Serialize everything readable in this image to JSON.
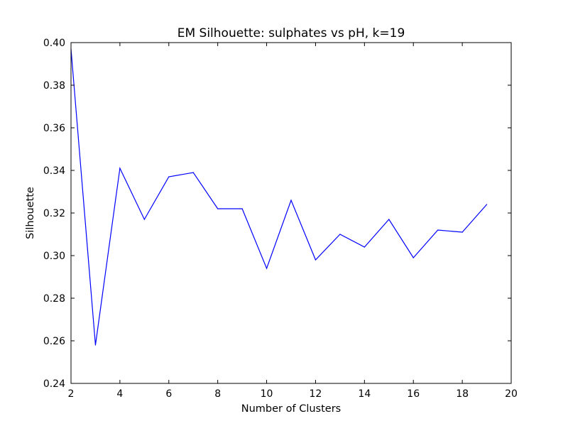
{
  "chart_data": {
    "type": "line",
    "title": "EM Silhouette: sulphates vs pH, k=19",
    "xlabel": "Number of Clusters",
    "ylabel": "Silhouette",
    "xlim": [
      2,
      20
    ],
    "ylim": [
      0.24,
      0.4
    ],
    "xticks": [
      2,
      4,
      6,
      8,
      10,
      12,
      14,
      16,
      18,
      20
    ],
    "yticks": [
      "0.24",
      "0.26",
      "0.28",
      "0.30",
      "0.32",
      "0.34",
      "0.36",
      "0.38",
      "0.40"
    ],
    "grid": false,
    "series": [
      {
        "color": "#0000ff",
        "x": [
          2,
          3,
          4,
          5,
          6,
          7,
          8,
          9,
          10,
          11,
          12,
          13,
          14,
          15,
          16,
          17,
          18,
          19
        ],
        "y": [
          0.397,
          0.258,
          0.341,
          0.317,
          0.337,
          0.339,
          0.322,
          0.322,
          0.294,
          0.326,
          0.298,
          0.31,
          0.304,
          0.317,
          0.299,
          0.312,
          0.311,
          0.324
        ]
      }
    ]
  }
}
